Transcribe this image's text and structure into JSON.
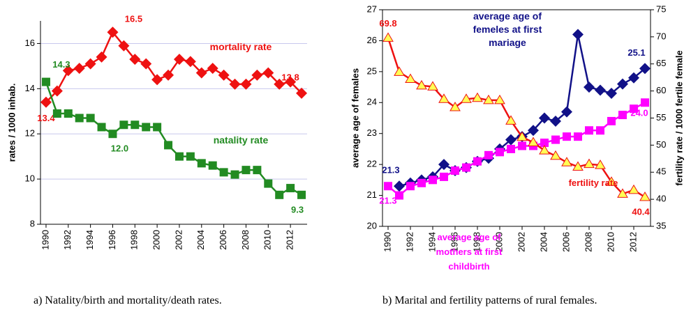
{
  "chart_data": [
    {
      "type": "line",
      "caption": "a) Natality/birth and mortality/death rates.",
      "ylabel": "rates / 1000 inhab.",
      "x": [
        1990,
        1991,
        1992,
        1993,
        1994,
        1995,
        1996,
        1997,
        1998,
        1999,
        2000,
        2001,
        2002,
        2003,
        2004,
        2005,
        2006,
        2007,
        2008,
        2009,
        2010,
        2011,
        2012,
        2013
      ],
      "xlim": [
        1989.5,
        2013.5
      ],
      "xticks": [
        1990,
        1992,
        1994,
        1996,
        1998,
        2000,
        2002,
        2004,
        2006,
        2008,
        2010,
        2012
      ],
      "ylim": [
        8,
        17
      ],
      "yticks": [
        8,
        10,
        12,
        14,
        16
      ],
      "grid": true,
      "series": [
        {
          "name": "mortality rate",
          "color": "#ee1111",
          "marker": "diamond",
          "values": [
            13.4,
            13.9,
            14.8,
            14.9,
            15.1,
            15.4,
            16.5,
            15.9,
            15.3,
            15.1,
            14.4,
            14.6,
            15.3,
            15.2,
            14.7,
            14.9,
            14.6,
            14.2,
            14.2,
            14.6,
            14.7,
            14.2,
            14.3,
            13.8
          ],
          "value_labels": [
            "13.4",
            null,
            null,
            null,
            null,
            null,
            "16.5",
            null,
            null,
            null,
            null,
            null,
            null,
            null,
            null,
            null,
            null,
            null,
            null,
            null,
            null,
            null,
            null,
            "13.8"
          ]
        },
        {
          "name": "natality rate",
          "color": "#228b22",
          "marker": "square",
          "values": [
            14.3,
            12.9,
            12.9,
            12.7,
            12.7,
            12.3,
            12.0,
            12.4,
            12.4,
            12.3,
            12.3,
            11.5,
            11.0,
            11.0,
            10.7,
            10.6,
            10.3,
            10.2,
            10.4,
            10.4,
            9.8,
            9.3,
            9.6,
            9.3
          ],
          "value_labels": [
            "14.3",
            null,
            null,
            null,
            null,
            null,
            "12.0",
            null,
            null,
            null,
            null,
            null,
            null,
            null,
            null,
            null,
            null,
            null,
            null,
            null,
            null,
            null,
            null,
            "9.3"
          ]
        }
      ]
    },
    {
      "type": "line",
      "caption": "b) Marital and fertility patterns of rural females.",
      "ylabel": "average age of females",
      "y2label": "fertility rate / 1000 fertile female",
      "x": [
        1990,
        1991,
        1992,
        1993,
        1994,
        1995,
        1996,
        1997,
        1998,
        1999,
        2000,
        2001,
        2002,
        2003,
        2004,
        2005,
        2006,
        2007,
        2008,
        2009,
        2010,
        2011,
        2012,
        2013
      ],
      "xlim": [
        1989.5,
        2013.5
      ],
      "xticks": [
        1990,
        1992,
        1994,
        1996,
        1998,
        2000,
        2002,
        2004,
        2006,
        2008,
        2010,
        2012
      ],
      "ylim": [
        20,
        27
      ],
      "yticks": [
        20,
        21,
        22,
        23,
        24,
        25,
        26,
        27
      ],
      "y2lim": [
        35,
        75
      ],
      "y2ticks": [
        35,
        40,
        45,
        50,
        55,
        60,
        65,
        70,
        75
      ],
      "grid": false,
      "series": [
        {
          "name": "average age of femeles at first mariage",
          "color": "#111188",
          "marker": "diamond",
          "values": [
            null,
            21.3,
            21.4,
            21.5,
            21.6,
            22.0,
            21.8,
            21.9,
            22.1,
            22.2,
            22.5,
            22.8,
            22.9,
            23.1,
            23.5,
            23.4,
            23.7,
            26.2,
            24.5,
            24.4,
            24.3,
            24.6,
            24.8,
            25.1
          ],
          "value_labels": [
            null,
            "21.3",
            null,
            null,
            null,
            null,
            null,
            null,
            null,
            null,
            null,
            null,
            null,
            null,
            null,
            null,
            null,
            null,
            null,
            null,
            null,
            null,
            null,
            "25.1"
          ]
        },
        {
          "name": "average age of mothers at first childbirth",
          "color": "#ff00ff",
          "marker": "square",
          "values": [
            21.3,
            21.0,
            21.3,
            21.4,
            21.5,
            21.6,
            21.8,
            21.9,
            22.1,
            22.3,
            22.4,
            22.5,
            22.6,
            22.6,
            22.7,
            22.8,
            22.9,
            22.9,
            23.1,
            23.1,
            23.4,
            23.6,
            23.8,
            24.0
          ],
          "value_labels": [
            "21.3",
            null,
            null,
            null,
            null,
            null,
            null,
            null,
            null,
            null,
            null,
            null,
            null,
            null,
            null,
            null,
            null,
            null,
            null,
            null,
            null,
            null,
            null,
            "24.0"
          ]
        },
        {
          "name": "fertility rate",
          "color": "#ee1111",
          "marker": "triangle",
          "marker_fill": "#ffff55",
          "axis": "y2",
          "values": [
            69.8,
            63.5,
            62.2,
            61.0,
            60.8,
            58.5,
            57.0,
            58.5,
            58.7,
            58.3,
            58.3,
            54.5,
            51.5,
            50.5,
            49.0,
            48.0,
            46.8,
            46.0,
            46.5,
            46.3,
            43.2,
            41.0,
            41.7,
            40.4
          ],
          "value_labels": [
            "69.8",
            null,
            null,
            null,
            null,
            null,
            null,
            null,
            null,
            null,
            null,
            null,
            null,
            null,
            null,
            null,
            null,
            null,
            null,
            null,
            null,
            null,
            null,
            "40.4"
          ]
        }
      ]
    }
  ]
}
